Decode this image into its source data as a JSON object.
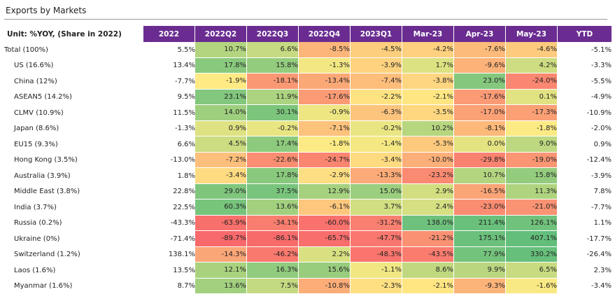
{
  "title": "Exports by Markets",
  "chart_data": {
    "type": "table",
    "title": "Exports by Markets",
    "unit_label": "Unit: %YOY, (Share in 2022)",
    "columns": [
      "2022",
      "2022Q2",
      "2022Q3",
      "2022Q4",
      "2023Q1",
      "Mar-23",
      "Apr-23",
      "May-23",
      "YTD"
    ],
    "heat_columns": [
      1,
      2,
      3,
      4,
      5,
      6,
      7
    ],
    "rows": [
      {
        "label": "Total (100%)",
        "indent": false,
        "values": [
          5.5,
          10.7,
          6.6,
          -8.5,
          -4.5,
          -4.2,
          -7.6,
          -4.6,
          -5.1
        ]
      },
      {
        "label": "US (16.6%)",
        "indent": true,
        "values": [
          13.4,
          17.8,
          15.8,
          -1.3,
          -3.9,
          1.7,
          -9.6,
          4.2,
          -3.3
        ]
      },
      {
        "label": "China (12%)",
        "indent": true,
        "values": [
          -7.7,
          -1.9,
          -18.1,
          -13.4,
          -7.4,
          -3.8,
          23.0,
          -24.0,
          -5.5
        ]
      },
      {
        "label": "ASEAN5 (14.2%)",
        "indent": true,
        "values": [
          9.5,
          23.1,
          11.9,
          -17.6,
          -2.2,
          -2.1,
          -17.6,
          0.1,
          -4.9
        ]
      },
      {
        "label": "CLMV (10.9%)",
        "indent": true,
        "values": [
          11.5,
          14.0,
          30.1,
          -0.9,
          -6.3,
          -3.5,
          -17.0,
          -17.3,
          -10.9
        ]
      },
      {
        "label": "Japan (8.6%)",
        "indent": true,
        "values": [
          -1.3,
          0.9,
          -0.2,
          -7.1,
          -0.2,
          10.2,
          -8.1,
          -1.8,
          -2.0
        ]
      },
      {
        "label": "EU15 (9.3%)",
        "indent": true,
        "values": [
          6.6,
          4.5,
          17.4,
          -1.8,
          -1.4,
          -5.3,
          0.0,
          9.0,
          0.9
        ]
      },
      {
        "label": "Hong Kong  (3.5%)",
        "indent": true,
        "values": [
          -13.0,
          -7.2,
          -22.6,
          -24.7,
          -3.4,
          -10.0,
          -29.8,
          -19.0,
          -12.4
        ]
      },
      {
        "label": "Australia (3.9%)",
        "indent": true,
        "values": [
          1.8,
          -3.4,
          17.8,
          -2.9,
          -13.3,
          -23.2,
          10.7,
          15.8,
          -3.9
        ]
      },
      {
        "label": "Middle East  (3.8%)",
        "indent": true,
        "values": [
          22.8,
          29.0,
          37.5,
          12.9,
          15.0,
          2.9,
          -16.5,
          11.3,
          7.8
        ]
      },
      {
        "label": "India (3.7%)",
        "indent": true,
        "values": [
          22.5,
          60.3,
          13.6,
          -6.1,
          3.7,
          2.4,
          -23.0,
          -21.0,
          -7.7
        ]
      },
      {
        "label": "Russia (0.2%)",
        "indent": true,
        "values": [
          -43.3,
          -63.9,
          -34.1,
          -60.0,
          -31.2,
          138.0,
          211.4,
          126.1,
          1.1
        ]
      },
      {
        "label": "Ukraine (0%)",
        "indent": true,
        "values": [
          -71.4,
          -89.7,
          -86.1,
          -65.7,
          -47.7,
          -21.2,
          175.1,
          407.1,
          -17.7
        ]
      },
      {
        "label": "Switzerland (1.2%)",
        "indent": true,
        "values": [
          138.1,
          -14.3,
          -46.2,
          2.2,
          -48.3,
          -43.5,
          77.9,
          330.2,
          -26.4
        ]
      },
      {
        "label": "Laos (1.6%)",
        "indent": true,
        "values": [
          13.5,
          12.1,
          16.3,
          15.6,
          -1.1,
          8.6,
          9.9,
          6.5,
          2.3
        ]
      },
      {
        "label": "Myanmar (1.6%)",
        "indent": true,
        "values": [
          8.7,
          13.6,
          7.5,
          -10.8,
          -2.3,
          -2.1,
          -9.3,
          -1.6,
          -3.4
        ]
      }
    ]
  },
  "colors": {
    "header_bg": "#6a2c91",
    "header_text": "#ffffff",
    "scale_low": "#f8696b",
    "scale_mid": "#ffeb84",
    "scale_high": "#63be7b"
  }
}
